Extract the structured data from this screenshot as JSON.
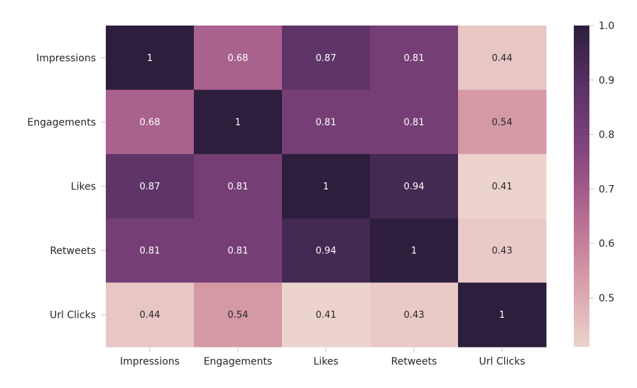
{
  "chart_data": {
    "type": "heatmap",
    "title": "",
    "xlabel": "",
    "ylabel": "",
    "rows": [
      "Impressions",
      "Engagements",
      "Likes",
      "Retweets",
      "Url Clicks"
    ],
    "columns": [
      "Impressions",
      "Engagements",
      "Likes",
      "Retweets",
      "Url Clicks"
    ],
    "values": [
      [
        1,
        0.68,
        0.87,
        0.81,
        0.44
      ],
      [
        0.68,
        1,
        0.81,
        0.81,
        0.54
      ],
      [
        0.87,
        0.81,
        1,
        0.94,
        0.41
      ],
      [
        0.81,
        0.81,
        0.94,
        1,
        0.43
      ],
      [
        0.44,
        0.54,
        0.41,
        0.43,
        1
      ]
    ],
    "annotations": true,
    "colorbar": {
      "range": [
        0.41,
        1.0
      ],
      "ticks": [
        0.5,
        0.6,
        0.7,
        0.8,
        0.9,
        1.0
      ],
      "tick_labels": [
        "0.5",
        "0.6",
        "0.7",
        "0.8",
        "0.9",
        "1.0"
      ],
      "colormap": [
        "#ecd3cd",
        "#d89ea8",
        "#b76d92",
        "#86467f",
        "#5b3366",
        "#2d1e3e"
      ]
    }
  }
}
